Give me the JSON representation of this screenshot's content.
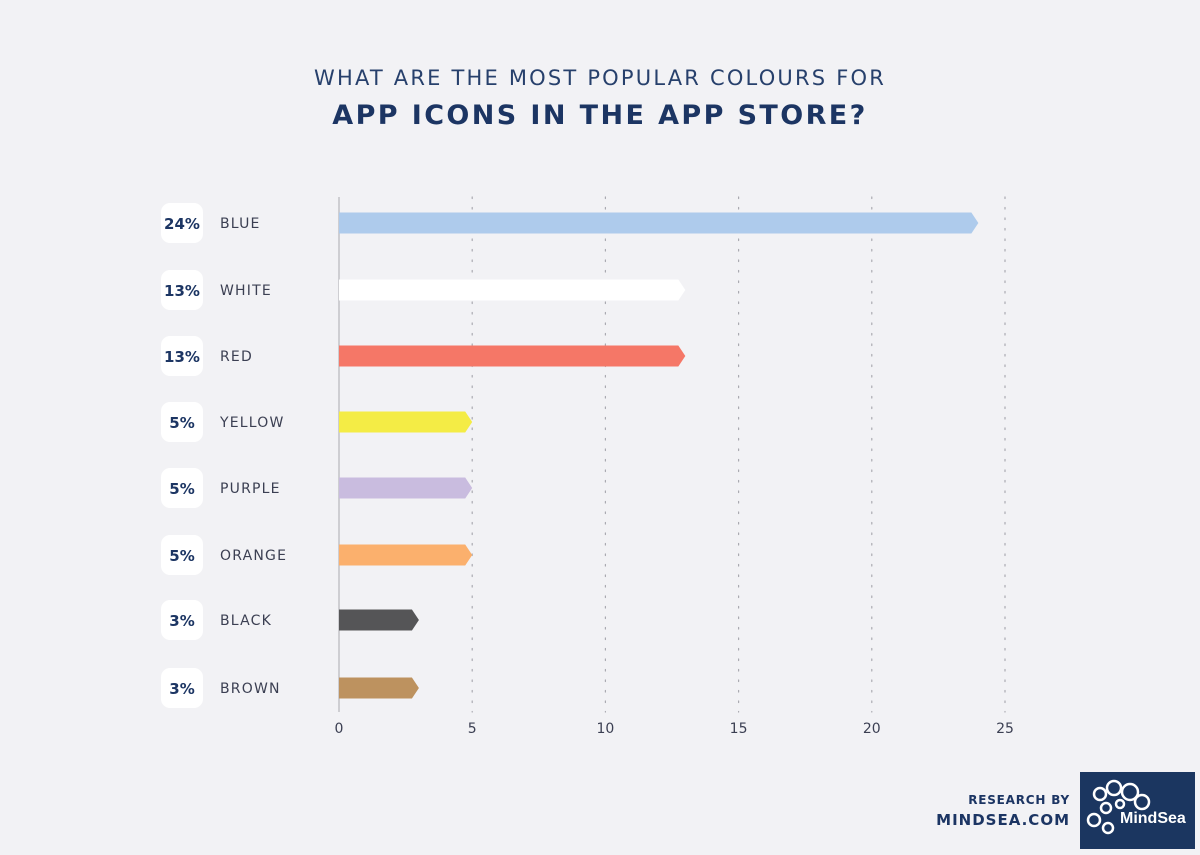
{
  "title": {
    "line1": "WHAT ARE THE MOST POPULAR COLOURS FOR",
    "line2": "APP ICONS IN THE APP STORE?"
  },
  "chart_data": {
    "type": "bar",
    "orientation": "horizontal",
    "categories": [
      "BLUE",
      "WHITE",
      "RED",
      "YELLOW",
      "PURPLE",
      "ORANGE",
      "BLACK",
      "BROWN"
    ],
    "values": [
      24,
      13,
      13,
      5,
      5,
      5,
      3,
      3
    ],
    "value_labels": [
      "24%",
      "13%",
      "13%",
      "5%",
      "5%",
      "5%",
      "3%",
      "3%"
    ],
    "colors": [
      "#aecbec",
      "#ffffff",
      "#f57767",
      "#f4ec45",
      "#c9bcdf",
      "#fbb06d",
      "#555557",
      "#bd925f"
    ],
    "xlim": [
      0,
      25
    ],
    "xticks": [
      0,
      5,
      10,
      15,
      20,
      25
    ],
    "grid": "vertical-dotted",
    "title": "WHAT ARE THE MOST POPULAR COLOURS FOR APP ICONS IN THE APP STORE?"
  },
  "footer": {
    "research_by": "RESEARCH BY",
    "site": "MINDSEA.COM",
    "logo_text": "MindSea"
  }
}
